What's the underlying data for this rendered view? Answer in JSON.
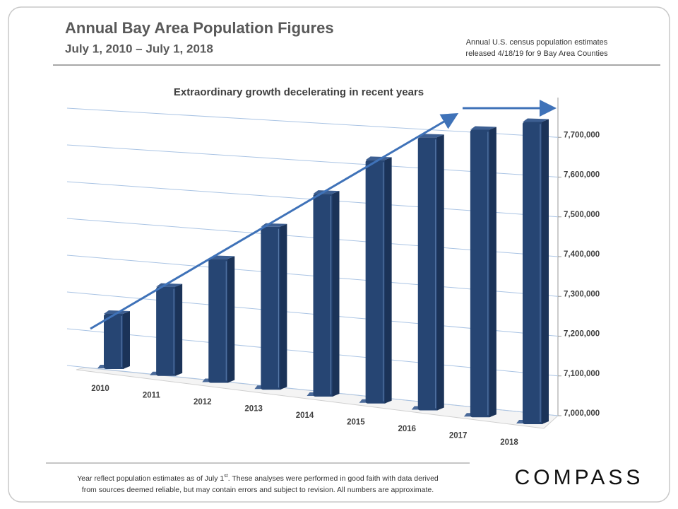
{
  "header": {
    "title": "Annual Bay Area Population Figures",
    "subtitle": "July 1, 2010 – July 1, 2018",
    "note": [
      "Annual U.S. census population estimates",
      "released 4/18/19 for 9 Bay Area Counties"
    ]
  },
  "chart_data": {
    "type": "bar",
    "title": "Extraordinary growth decelerating in recent years",
    "categories": [
      "2010",
      "2011",
      "2012",
      "2013",
      "2014",
      "2015",
      "2016",
      "2017",
      "2018"
    ],
    "values": [
      7150000,
      7240000,
      7330000,
      7430000,
      7530000,
      7630000,
      7700000,
      7730000,
      7760000
    ],
    "color": "#264573",
    "ylim": [
      7000000,
      7800000
    ],
    "yticks": [
      {
        "value": 7000000,
        "label": "7,000,000"
      },
      {
        "value": 7100000,
        "label": "7,100,000"
      },
      {
        "value": 7200000,
        "label": "7,200,000"
      },
      {
        "value": 7300000,
        "label": "7,300,000"
      },
      {
        "value": 7400000,
        "label": "7,400,000"
      },
      {
        "value": 7500000,
        "label": "7,500,000"
      },
      {
        "value": 7600000,
        "label": "7,600,000"
      },
      {
        "value": 7700000,
        "label": "7,700,000"
      }
    ],
    "grid": true
  },
  "footer": {
    "line1": "Year reflect population estimates as of July 1",
    "line1_sup": "st",
    "line1_end": ".  These analyses were performed in good faith with data derived",
    "line2": "from sources deemed reliable, but may contain errors and subject to revision.  All numbers are approximate.",
    "logo": "COMPASS"
  }
}
